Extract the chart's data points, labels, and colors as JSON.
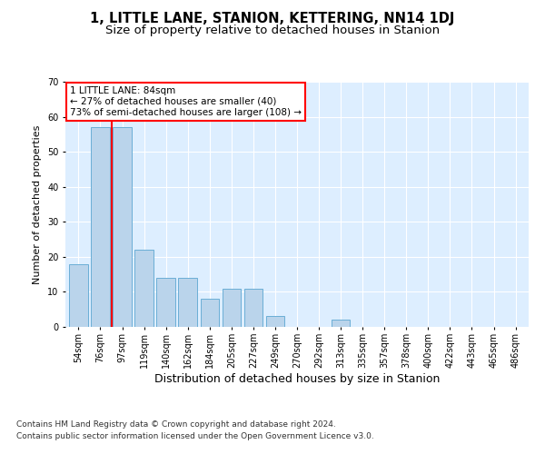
{
  "title": "1, LITTLE LANE, STANION, KETTERING, NN14 1DJ",
  "subtitle": "Size of property relative to detached houses in Stanion",
  "xlabel": "Distribution of detached houses by size in Stanion",
  "ylabel": "Number of detached properties",
  "categories": [
    "54sqm",
    "76sqm",
    "97sqm",
    "119sqm",
    "140sqm",
    "162sqm",
    "184sqm",
    "205sqm",
    "227sqm",
    "249sqm",
    "270sqm",
    "292sqm",
    "313sqm",
    "335sqm",
    "357sqm",
    "378sqm",
    "400sqm",
    "422sqm",
    "443sqm",
    "465sqm",
    "486sqm"
  ],
  "values": [
    18,
    57,
    57,
    22,
    14,
    14,
    8,
    11,
    11,
    3,
    0,
    0,
    2,
    0,
    0,
    0,
    0,
    0,
    0,
    0,
    0
  ],
  "bar_color": "#bad4eb",
  "bar_edge_color": "#6aaed6",
  "red_line_x": 1.5,
  "annotation_text": "1 LITTLE LANE: 84sqm\n← 27% of detached houses are smaller (40)\n73% of semi-detached houses are larger (108) →",
  "ylim": [
    0,
    70
  ],
  "yticks": [
    0,
    10,
    20,
    30,
    40,
    50,
    60,
    70
  ],
  "footer_line1": "Contains HM Land Registry data © Crown copyright and database right 2024.",
  "footer_line2": "Contains public sector information licensed under the Open Government Licence v3.0.",
  "bg_color": "#ddeeff",
  "grid_color": "white",
  "title_fontsize": 10.5,
  "subtitle_fontsize": 9.5,
  "xlabel_fontsize": 9,
  "ylabel_fontsize": 8,
  "tick_fontsize": 7,
  "annotation_fontsize": 7.5,
  "footer_fontsize": 6.5
}
